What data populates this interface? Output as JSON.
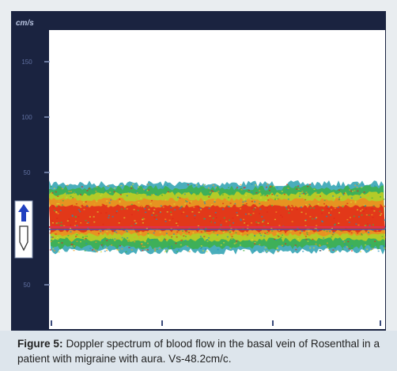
{
  "figure": {
    "axis_unit": "cm/s",
    "y_tick_labels": [
      "150",
      "100",
      "50",
      "50"
    ],
    "caption_label": "Figure 5:",
    "caption_text": "Doppler spectrum of blood flow in the basal vein of Rosenthal in a patient with migraine with aura. Vs-48.2cm/c."
  }
}
